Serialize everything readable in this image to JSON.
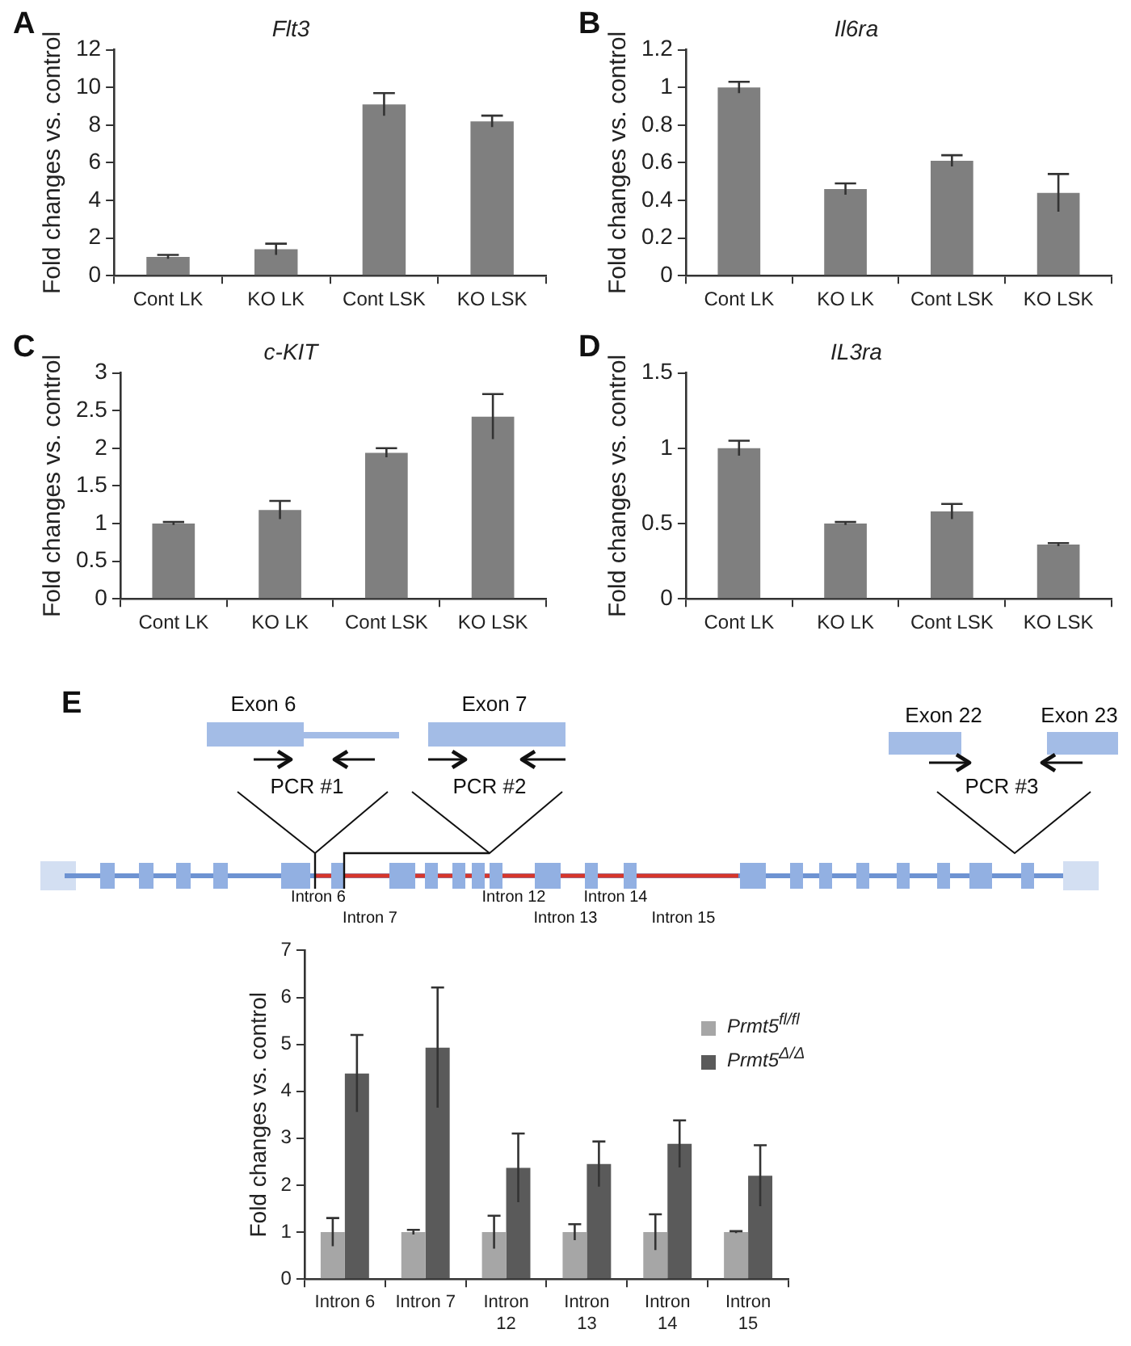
{
  "chart_data": [
    {
      "type": "bar",
      "title": "Flt3",
      "ylabel": "Fold changes vs. control",
      "annotations": [
        "A"
      ],
      "categories": [
        "Cont LK",
        "KO LK",
        "Cont LSK",
        "KO LSK"
      ],
      "values": [
        1,
        1.4,
        9.1,
        8.2
      ],
      "errors": [
        0.1,
        0.3,
        0.6,
        0.3
      ],
      "color": "#7f7f7f",
      "ylim": [
        0,
        12
      ],
      "yticks": [
        0,
        2,
        4,
        6,
        8,
        10,
        12
      ],
      "grid": false,
      "legend": false
    },
    {
      "type": "bar",
      "title": "Il6ra",
      "ylabel": "Fold changes vs. control",
      "annotations": [
        "B"
      ],
      "categories": [
        "Cont LK",
        "KO LK",
        "Cont LSK",
        "KO LSK"
      ],
      "values": [
        1.0,
        0.46,
        0.61,
        0.44
      ],
      "errors": [
        0.03,
        0.03,
        0.03,
        0.1
      ],
      "color": "#7f7f7f",
      "ylim": [
        0,
        1.2
      ],
      "yticks": [
        0,
        0.2,
        0.4,
        0.6,
        0.8,
        1,
        1.2
      ],
      "grid": false,
      "legend": false
    },
    {
      "type": "bar",
      "title": "c-KIT",
      "ylabel": "Fold changes vs. control",
      "annotations": [
        "C"
      ],
      "categories": [
        "Cont LK",
        "KO LK",
        "Cont LSK",
        "KO LSK"
      ],
      "values": [
        1.0,
        1.18,
        1.94,
        2.42
      ],
      "errors": [
        0.02,
        0.12,
        0.06,
        0.3
      ],
      "color": "#7f7f7f",
      "ylim": [
        0,
        3
      ],
      "yticks": [
        0,
        0.5,
        1,
        1.5,
        2,
        2.5,
        3
      ],
      "grid": false,
      "legend": false
    },
    {
      "type": "bar",
      "title": "IL3ra",
      "ylabel": "Fold changes vs. control",
      "annotations": [
        "D"
      ],
      "categories": [
        "Cont LK",
        "KO LK",
        "Cont LSK",
        "KO LSK"
      ],
      "values": [
        1.0,
        0.5,
        0.58,
        0.36
      ],
      "errors": [
        0.05,
        0.01,
        0.05,
        0.01
      ],
      "color": "#7f7f7f",
      "ylim": [
        0,
        1.5
      ],
      "yticks": [
        0,
        0.5,
        1,
        1.5
      ],
      "grid": false,
      "legend": false
    },
    {
      "type": "other",
      "annotations": [
        "E",
        "Exon 6",
        "Exon 7",
        "Exon 22",
        "Exon 23",
        "PCR #1",
        "PCR #2",
        "PCR #3",
        "Intron 6",
        "Intron 7",
        "Intron 12",
        "Intron 13",
        "Intron 14",
        "Intron 15"
      ]
    },
    {
      "type": "bar",
      "ylabel": "Fold changes vs. control",
      "categories": [
        "Intron 6",
        "Intron 7",
        "Intron 12",
        "Intron 13",
        "Intron 14",
        "Intron 15"
      ],
      "series": [
        {
          "name": "Prmt5$^{fl/fl}$",
          "color": "#a6a6a6",
          "values": [
            1,
            1,
            1,
            1,
            1,
            1
          ],
          "errors": [
            0.3,
            0.05,
            0.35,
            0.17,
            0.38,
            0.02
          ]
        },
        {
          "name": "Prmt5$^{Δ/Δ}$",
          "color": "#5a5a5a",
          "values": [
            4.38,
            4.93,
            2.37,
            2.45,
            2.88,
            2.2
          ],
          "errors": [
            0.82,
            1.28,
            0.73,
            0.48,
            0.5,
            0.65
          ]
        }
      ],
      "ylim": [
        0,
        7
      ],
      "yticks": [
        0,
        1,
        2,
        3,
        4,
        5,
        6,
        7
      ],
      "grid": false,
      "legend": "top right"
    }
  ]
}
